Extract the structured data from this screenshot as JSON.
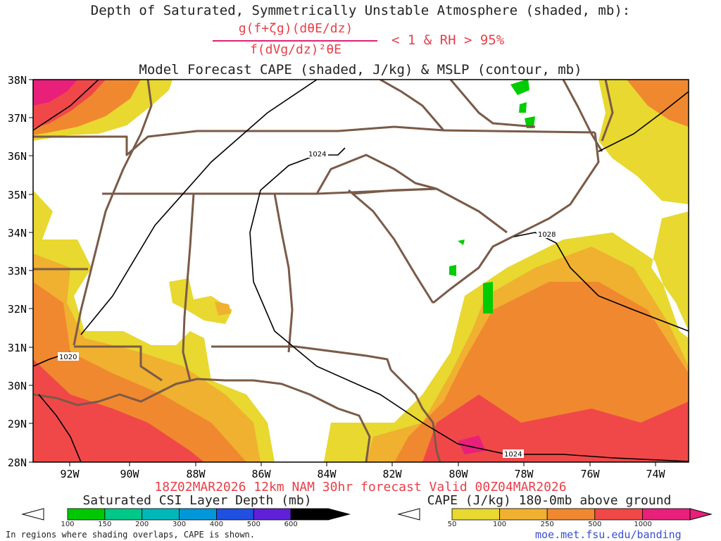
{
  "header": {
    "title_line1": "Depth of Saturated, Symmetrically Unstable Atmosphere (shaded, mb):",
    "fraction_numerator": "g(f+ζg)(dθE/dz)",
    "fraction_denominator": "f(dVg/dz)²θE",
    "condition": "< 1 & RH > 95%",
    "title_line2": "Model Forecast CAPE (shaded, J/kg) & MSLP (contour, mb)"
  },
  "map": {
    "lat_labels": [
      "38N",
      "37N",
      "36N",
      "35N",
      "34N",
      "33N",
      "32N",
      "31N",
      "30N",
      "29N",
      "28N"
    ],
    "lon_labels": [
      "92W",
      "90W",
      "88W",
      "86W",
      "84W",
      "82W",
      "80W",
      "78W",
      "76W",
      "74W"
    ],
    "isobar_labels": [
      "1024",
      "1028",
      "1020",
      "1024"
    ],
    "colors": {
      "border": "#7a5a48",
      "isobar": "#000000",
      "cape_50": "#e8d830",
      "cape_100": "#f0b030",
      "cape_250": "#f08830",
      "cape_500": "#f04848",
      "cape_1000": "#e8207a",
      "csi": "#00cc00"
    }
  },
  "footer": {
    "valid_line": "18Z02MAR2026 12km NAM 30hr forecast Valid 00Z04MAR2026",
    "csi_colorbar": {
      "title": "Saturated CSI Layer Depth (mb)",
      "labels": [
        "100",
        "150",
        "200",
        "300",
        "400",
        "500",
        "600"
      ],
      "colors": [
        "#00c800",
        "#00c888",
        "#00b8b8",
        "#0098d8",
        "#2050e0",
        "#6020d8",
        "#000000"
      ]
    },
    "cape_colorbar": {
      "title": "CAPE (J/kg) 180-0mb above ground",
      "labels": [
        "50",
        "100",
        "250",
        "500",
        "1000"
      ],
      "colors": [
        "#e8d830",
        "#f0b030",
        "#f08830",
        "#f04848",
        "#e8207a"
      ]
    },
    "note": "In regions where shading overlaps, CAPE is shown.",
    "url": "moe.met.fsu.edu/banding"
  }
}
